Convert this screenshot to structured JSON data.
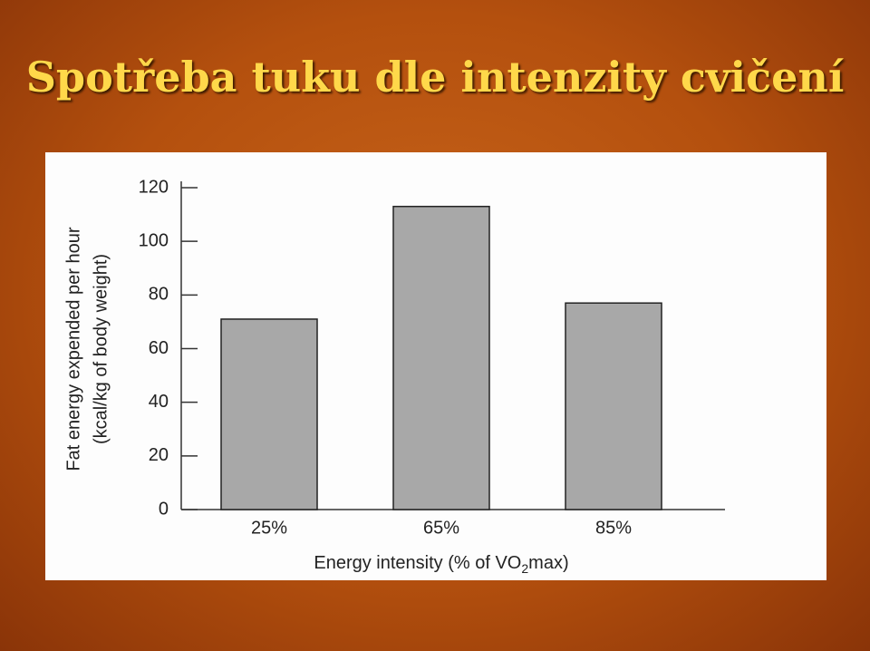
{
  "title": "Spotřeba tuku dle intenzity cvičení",
  "chart_data": {
    "type": "bar",
    "y_label": [
      "Fat energy expended per hour",
      "(kcal/kg of body weight)"
    ],
    "x_label": [
      "Energy intensity (% of VO",
      "2",
      "max)"
    ],
    "categories": [
      "25%",
      "65%",
      "85%"
    ],
    "values": [
      71,
      113,
      77
    ],
    "color": "#a8a8a8",
    "ylim": [
      0,
      120
    ],
    "yticks": [
      0,
      20,
      40,
      60,
      80,
      100,
      120
    ],
    "grid": false
  }
}
